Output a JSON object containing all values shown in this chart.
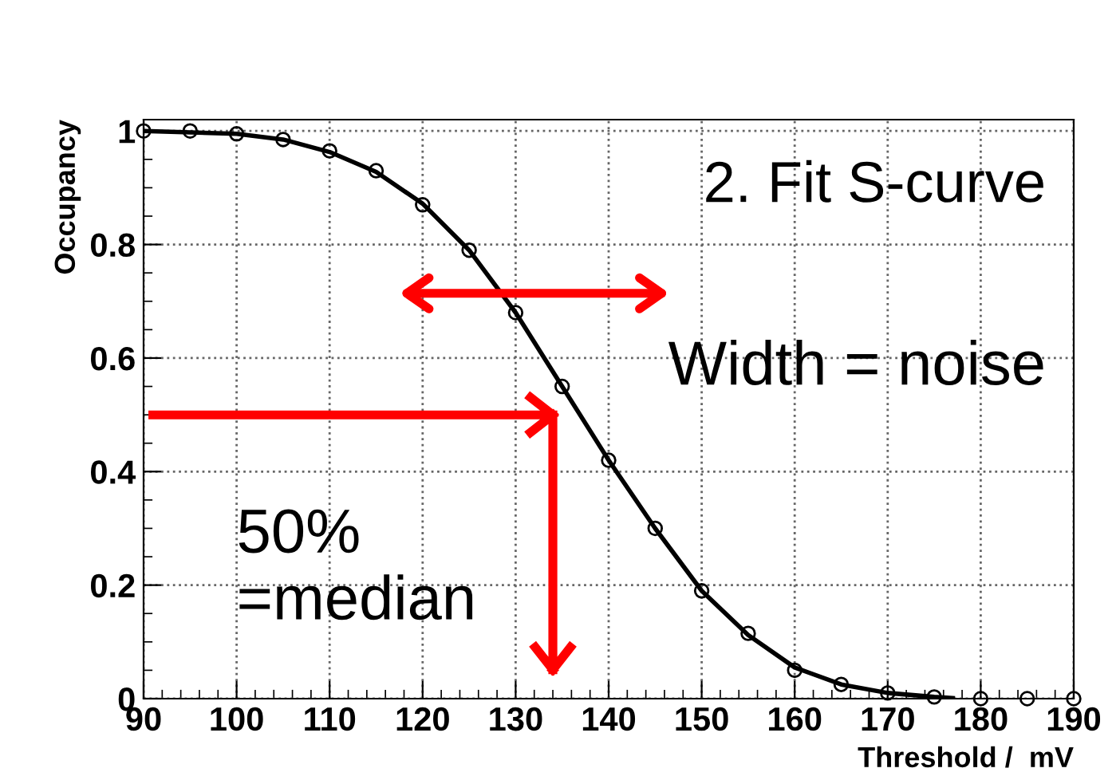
{
  "chart_data": {
    "type": "scatter",
    "xlabel": "Threshold /  mV",
    "ylabel": "Occupancy",
    "annotations": [
      "2. Fit S-curve",
      "Width = noise",
      "50%\n=median"
    ],
    "series": [
      {
        "color": "#000000",
        "marker": "circle",
        "x": [
          90,
          95,
          100,
          105,
          110,
          115,
          120,
          125,
          130,
          135,
          140,
          145,
          150,
          155,
          160,
          165,
          170,
          175,
          180,
          185,
          190
        ],
        "values": [
          1.0,
          1.0,
          0.995,
          0.985,
          0.965,
          0.93,
          0.87,
          0.79,
          0.68,
          0.55,
          0.42,
          0.3,
          0.19,
          0.115,
          0.05,
          0.025,
          0.01,
          0.003,
          0,
          0,
          0
        ]
      },
      {
        "type": "line",
        "color": "#000000",
        "x": [
          90,
          100,
          105,
          110,
          115,
          120,
          125,
          130,
          135,
          140,
          145,
          150,
          155,
          160,
          165,
          170,
          175,
          177
        ],
        "values": [
          1.0,
          0.995,
          0.985,
          0.963,
          0.928,
          0.872,
          0.79,
          0.68,
          0.55,
          0.42,
          0.3,
          0.19,
          0.112,
          0.055,
          0.025,
          0.01,
          0.003,
          0.001
        ]
      }
    ],
    "xlim": [
      90,
      190
    ],
    "xticks": [
      90,
      100,
      110,
      120,
      130,
      140,
      150,
      160,
      170,
      180,
      190
    ],
    "ylim": [
      0,
      1.02
    ],
    "yticks": [
      0,
      0.2,
      0.4,
      0.6,
      0.8,
      1
    ],
    "grid": true
  }
}
